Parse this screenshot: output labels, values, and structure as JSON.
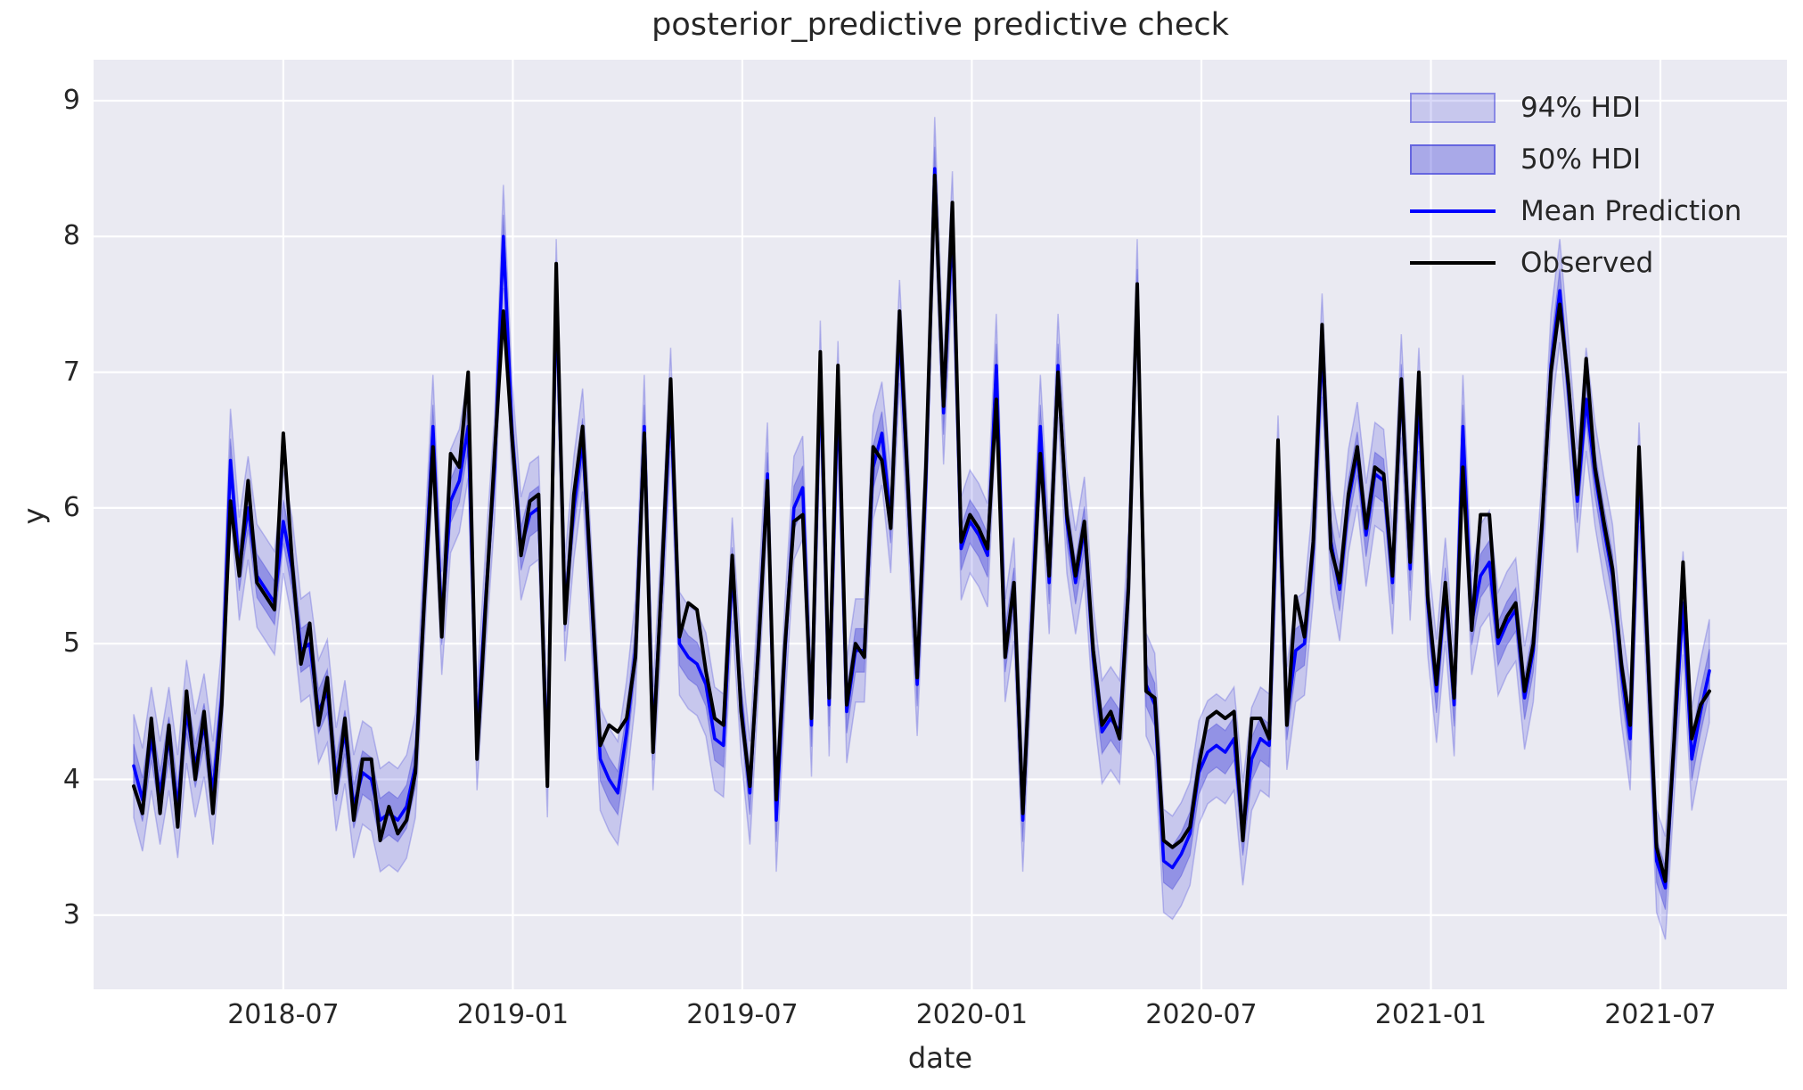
{
  "title": "posterior_predictive predictive check",
  "axes": {
    "xlabel": "date",
    "ylabel": "y",
    "yticks": [
      3,
      4,
      5,
      6,
      7,
      8,
      9
    ],
    "xticks": [
      {
        "label": "2018-07",
        "week": 17.0
      },
      {
        "label": "2019-01",
        "week": 43.07
      },
      {
        "label": "2019-07",
        "week": 69.14
      },
      {
        "label": "2020-01",
        "week": 95.21
      },
      {
        "label": "2020-07",
        "week": 121.29
      },
      {
        "label": "2021-01",
        "week": 147.36
      },
      {
        "label": "2021-07",
        "week": 173.43
      }
    ]
  },
  "legend": {
    "items": [
      {
        "label": "94% HDI",
        "type": "patch",
        "color": "rgba(45,45,215,0.18)",
        "edge": "rgba(45,45,215,0.40)"
      },
      {
        "label": "50% HDI",
        "type": "patch",
        "color": "rgba(45,45,215,0.34)",
        "edge": "rgba(45,45,215,0.55)"
      },
      {
        "label": "Mean Prediction",
        "type": "line",
        "color": "#0000ff"
      },
      {
        "label": "Observed",
        "type": "line",
        "color": "#000000"
      }
    ]
  },
  "style": {
    "plot_bg": "#eaeaf2",
    "grid_color": "#ffffff",
    "text_color": "#262626",
    "mean_color": "#0000ff",
    "observed_color": "#000000",
    "hdi94_fill": "rgba(45,45,215,0.18)",
    "hdi50_fill": "rgba(45,45,215,0.34)"
  },
  "chart_data": {
    "type": "line",
    "title": "posterior_predictive predictive check",
    "xlabel": "date",
    "ylabel": "y",
    "x_start_date": "2018-03-04",
    "x_step_days": 7,
    "n_points": 180,
    "ylim": [
      2.45,
      9.3
    ],
    "grid": true,
    "legend_position": "upper right",
    "hdi94_halfwidth": 0.38,
    "hdi50_halfwidth": 0.16,
    "series": [
      {
        "name": "Observed",
        "values": [
          3.95,
          3.75,
          4.45,
          3.75,
          4.4,
          3.65,
          4.65,
          4.0,
          4.5,
          3.75,
          4.55,
          6.05,
          5.5,
          6.2,
          5.45,
          5.35,
          5.25,
          6.55,
          5.6,
          4.85,
          5.15,
          4.4,
          4.75,
          3.9,
          4.45,
          3.7,
          4.15,
          4.15,
          3.55,
          3.8,
          3.6,
          3.7,
          4.05,
          5.3,
          6.45,
          5.05,
          6.4,
          6.3,
          7.0,
          4.15,
          5.3,
          6.4,
          7.45,
          6.5,
          5.65,
          6.05,
          6.1,
          3.95,
          7.8,
          5.15,
          6.1,
          6.6,
          5.4,
          4.25,
          4.4,
          4.35,
          4.45,
          4.9,
          6.55,
          4.2,
          5.5,
          6.95,
          5.05,
          5.3,
          5.25,
          4.8,
          4.45,
          4.4,
          5.65,
          4.5,
          3.95,
          5.0,
          6.2,
          3.85,
          5.0,
          5.9,
          5.95,
          4.45,
          7.15,
          4.6,
          7.05,
          4.55,
          5.0,
          4.9,
          6.45,
          6.35,
          5.85,
          7.45,
          6.1,
          4.75,
          6.3,
          8.45,
          6.75,
          8.25,
          5.75,
          5.95,
          5.85,
          5.7,
          6.8,
          4.9,
          5.45,
          3.75,
          5.1,
          6.4,
          5.5,
          7.0,
          5.95,
          5.5,
          5.9,
          4.95,
          4.4,
          4.5,
          4.3,
          5.4,
          7.65,
          4.65,
          4.6,
          3.55,
          3.5,
          3.55,
          3.65,
          4.1,
          4.45,
          4.5,
          4.45,
          4.5,
          3.55,
          4.45,
          4.45,
          4.3,
          6.5,
          4.4,
          5.35,
          5.05,
          5.75,
          7.35,
          5.7,
          5.45,
          6.1,
          6.45,
          5.85,
          6.3,
          6.25,
          5.5,
          6.95,
          5.6,
          7.0,
          5.35,
          4.7,
          5.45,
          4.6,
          6.3,
          5.1,
          5.95,
          5.95,
          5.05,
          5.2,
          5.3,
          4.65,
          5.0,
          5.9,
          7.0,
          7.5,
          6.9,
          6.1,
          7.1,
          6.3,
          5.9,
          5.55,
          4.85,
          4.4,
          6.45,
          4.95,
          3.5,
          3.25,
          4.3,
          5.6,
          4.3,
          4.55,
          4.65
        ]
      },
      {
        "name": "Mean Prediction",
        "values": [
          4.1,
          3.85,
          4.3,
          3.9,
          4.3,
          3.8,
          4.5,
          4.1,
          4.4,
          3.9,
          4.6,
          6.35,
          5.55,
          6.0,
          5.5,
          5.4,
          5.3,
          5.9,
          5.55,
          4.95,
          5.0,
          4.5,
          4.65,
          4.0,
          4.35,
          3.8,
          4.05,
          4.0,
          3.7,
          3.75,
          3.7,
          3.8,
          4.1,
          5.35,
          6.6,
          5.15,
          6.05,
          6.2,
          6.6,
          4.3,
          5.35,
          6.3,
          8.0,
          6.55,
          5.7,
          5.95,
          6.0,
          4.1,
          7.6,
          5.25,
          6.0,
          6.5,
          5.35,
          4.15,
          4.0,
          3.9,
          4.35,
          4.95,
          6.6,
          4.3,
          5.45,
          6.8,
          5.0,
          4.9,
          4.85,
          4.7,
          4.3,
          4.25,
          5.55,
          4.55,
          3.9,
          5.05,
          6.25,
          3.7,
          4.95,
          6.0,
          6.15,
          4.4,
          7.0,
          4.55,
          6.85,
          4.5,
          4.95,
          4.95,
          6.3,
          6.55,
          5.9,
          7.3,
          6.05,
          4.7,
          6.2,
          8.5,
          6.7,
          8.1,
          5.7,
          5.9,
          5.8,
          5.65,
          7.05,
          4.95,
          5.4,
          3.7,
          5.15,
          6.6,
          5.45,
          7.05,
          5.9,
          5.45,
          5.85,
          4.9,
          4.35,
          4.45,
          4.35,
          5.45,
          7.6,
          4.7,
          4.55,
          3.4,
          3.35,
          3.45,
          3.6,
          4.05,
          4.2,
          4.25,
          4.2,
          4.3,
          3.6,
          4.15,
          4.3,
          4.25,
          6.3,
          4.45,
          4.95,
          5.0,
          5.7,
          7.2,
          5.75,
          5.4,
          6.05,
          6.4,
          5.8,
          6.25,
          6.2,
          5.45,
          6.9,
          5.55,
          6.8,
          5.3,
          4.65,
          5.4,
          4.55,
          6.6,
          5.15,
          5.5,
          5.6,
          5.0,
          5.15,
          5.25,
          4.6,
          4.95,
          5.85,
          7.05,
          7.6,
          6.85,
          6.05,
          6.8,
          6.25,
          5.85,
          5.5,
          4.8,
          4.3,
          6.25,
          4.9,
          3.4,
          3.2,
          4.25,
          5.3,
          4.15,
          4.5,
          4.8
        ]
      }
    ]
  }
}
